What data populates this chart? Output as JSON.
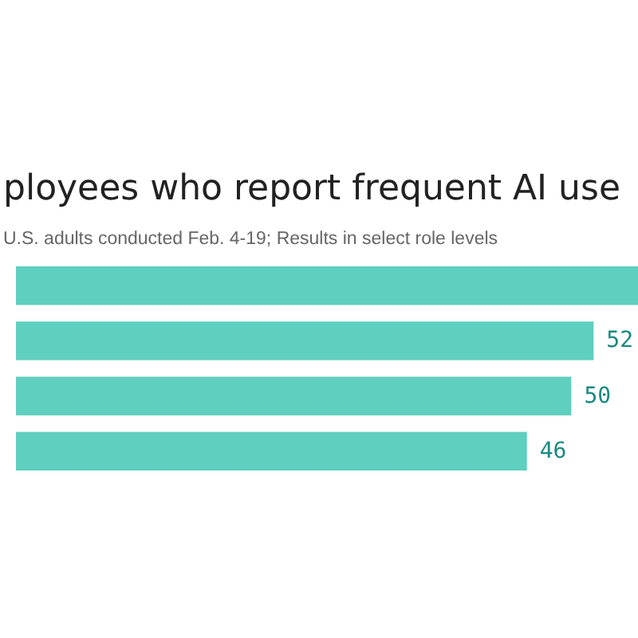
{
  "chart_data": {
    "type": "bar",
    "orientation": "horizontal",
    "title": "ployees who report frequent AI use",
    "subtitle": "U.S. adults conducted Feb. 4-19; Results in select role levels",
    "categories": [
      null,
      null,
      null,
      null
    ],
    "values": [
      56,
      52,
      50,
      46
    ],
    "value_labels": [
      null,
      "52",
      "50",
      "46"
    ],
    "color": "#5fcfbf",
    "xlim": [
      0,
      56
    ]
  }
}
